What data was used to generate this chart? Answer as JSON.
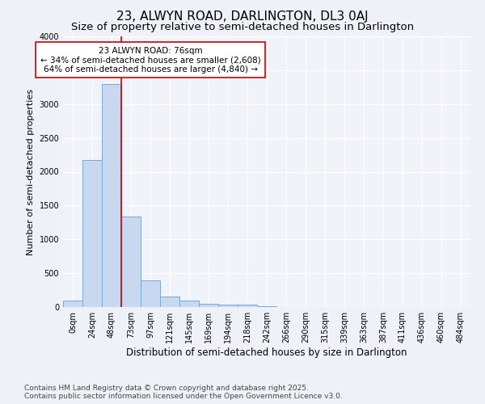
{
  "title": "23, ALWYN ROAD, DARLINGTON, DL3 0AJ",
  "subtitle": "Size of property relative to semi-detached houses in Darlington",
  "xlabel": "Distribution of semi-detached houses by size in Darlington",
  "ylabel": "Number of semi-detached properties",
  "bar_labels": [
    "0sqm",
    "24sqm",
    "48sqm",
    "73sqm",
    "97sqm",
    "121sqm",
    "145sqm",
    "169sqm",
    "194sqm",
    "218sqm",
    "242sqm",
    "266sqm",
    "290sqm",
    "315sqm",
    "339sqm",
    "363sqm",
    "387sqm",
    "411sqm",
    "436sqm",
    "460sqm",
    "484sqm"
  ],
  "bar_values": [
    100,
    2175,
    3300,
    1340,
    400,
    155,
    90,
    50,
    38,
    35,
    10,
    5,
    0,
    0,
    0,
    0,
    0,
    0,
    0,
    0,
    0
  ],
  "bar_color": "#c8d8ee",
  "bar_edge_color": "#7aa8d4",
  "vline_x": 2.5,
  "annotation_label": "23 ALWYN ROAD: 76sqm",
  "annotation_smaller": "← 34% of semi-detached houses are smaller (2,608)",
  "annotation_larger": "64% of semi-detached houses are larger (4,840) →",
  "vline_color": "#cc0000",
  "annotation_box_facecolor": "#ffffff",
  "annotation_box_edgecolor": "#cc0000",
  "ylim": [
    0,
    4000
  ],
  "yticks": [
    0,
    500,
    1000,
    1500,
    2000,
    2500,
    3000,
    3500,
    4000
  ],
  "footer1": "Contains HM Land Registry data © Crown copyright and database right 2025.",
  "footer2": "Contains public sector information licensed under the Open Government Licence v3.0.",
  "bg_color": "#eef2f8",
  "plot_bg_color": "#f0f4fa",
  "grid_color": "#ffffff",
  "title_fontsize": 11,
  "subtitle_fontsize": 9.5,
  "xlabel_fontsize": 8.5,
  "ylabel_fontsize": 8,
  "tick_fontsize": 7,
  "annotation_fontsize": 7.5,
  "footer_fontsize": 6.5
}
